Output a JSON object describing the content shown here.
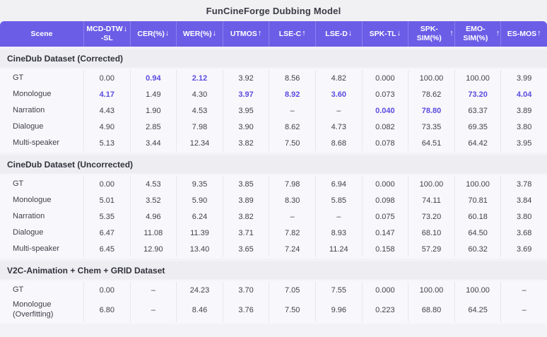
{
  "title": "FunCineForge Dubbing Model",
  "colors": {
    "header_bg": "#6c5de7",
    "highlight_text": "#5b4be0",
    "section_band_bg": "#ededf2",
    "rows_bg": "#f8f8fc"
  },
  "table": {
    "columns": [
      {
        "label": "Scene",
        "sublabel": "",
        "arrow": ""
      },
      {
        "label": "MCD-DTW",
        "sublabel": "-SL",
        "arrow": "↓"
      },
      {
        "label": "CER(%)",
        "sublabel": "",
        "arrow": "↓"
      },
      {
        "label": "WER(%)",
        "sublabel": "",
        "arrow": "↓"
      },
      {
        "label": "UTMOS",
        "sublabel": "",
        "arrow": "↑"
      },
      {
        "label": "LSE-C",
        "sublabel": "",
        "arrow": "↑"
      },
      {
        "label": "LSE-D",
        "sublabel": "",
        "arrow": "↓"
      },
      {
        "label": "SPK-TL",
        "sublabel": "",
        "arrow": "↓"
      },
      {
        "label": "SPK-SIM(%)",
        "sublabel": "",
        "arrow": "↑"
      },
      {
        "label": "EMO-SIM(%)",
        "sublabel": "",
        "arrow": "↑"
      },
      {
        "label": "ES-MOS",
        "sublabel": "",
        "arrow": "↑"
      }
    ],
    "sections": [
      {
        "title": "CineDub Dataset (Corrected)",
        "rows": [
          {
            "scene": "GT",
            "values": [
              "0.00",
              "0.94",
              "2.12",
              "3.92",
              "8.56",
              "4.82",
              "0.000",
              "100.00",
              "100.00",
              "3.99"
            ],
            "highlights": [
              1,
              2
            ]
          },
          {
            "scene": "Monologue",
            "values": [
              "4.17",
              "1.49",
              "4.30",
              "3.97",
              "8.92",
              "3.60",
              "0.073",
              "78.62",
              "73.20",
              "4.04"
            ],
            "highlights": [
              0,
              3,
              4,
              5,
              8,
              9
            ]
          },
          {
            "scene": "Narration",
            "values": [
              "4.43",
              "1.90",
              "4.53",
              "3.95",
              "–",
              "–",
              "0.040",
              "78.80",
              "63.37",
              "3.89"
            ],
            "highlights": [
              6,
              7
            ]
          },
          {
            "scene": "Dialogue",
            "values": [
              "4.90",
              "2.85",
              "7.98",
              "3.90",
              "8.62",
              "4.73",
              "0.082",
              "73.35",
              "69.35",
              "3.80"
            ],
            "highlights": []
          },
          {
            "scene": "Multi-speaker",
            "values": [
              "5.13",
              "3.44",
              "12.34",
              "3.82",
              "7.50",
              "8.68",
              "0.078",
              "64.51",
              "64.42",
              "3.95"
            ],
            "highlights": []
          }
        ]
      },
      {
        "title": "CineDub Dataset (Uncorrected)",
        "rows": [
          {
            "scene": "GT",
            "values": [
              "0.00",
              "4.53",
              "9.35",
              "3.85",
              "7.98",
              "6.94",
              "0.000",
              "100.00",
              "100.00",
              "3.78"
            ],
            "highlights": []
          },
          {
            "scene": "Monologue",
            "values": [
              "5.01",
              "3.52",
              "5.90",
              "3.89",
              "8.30",
              "5.85",
              "0.098",
              "74.11",
              "70.81",
              "3.84"
            ],
            "highlights": []
          },
          {
            "scene": "Narration",
            "values": [
              "5.35",
              "4.96",
              "6.24",
              "3.82",
              "–",
              "–",
              "0.075",
              "73.20",
              "60.18",
              "3.80"
            ],
            "highlights": []
          },
          {
            "scene": "Dialogue",
            "values": [
              "6.47",
              "11.08",
              "11.39",
              "3.71",
              "7.82",
              "8.93",
              "0.147",
              "68.10",
              "64.50",
              "3.68"
            ],
            "highlights": []
          },
          {
            "scene": "Multi-speaker",
            "values": [
              "6.45",
              "12.90",
              "13.40",
              "3.65",
              "7.24",
              "11.24",
              "0.158",
              "57.29",
              "60.32",
              "3.69"
            ],
            "highlights": []
          }
        ]
      },
      {
        "title": "V2C-Animation + Chem + GRID Dataset",
        "rows": [
          {
            "scene": "GT",
            "values": [
              "0.00",
              "–",
              "24.23",
              "3.70",
              "7.05",
              "7.55",
              "0.000",
              "100.00",
              "100.00",
              "–"
            ],
            "highlights": []
          },
          {
            "scene": "Monologue (Overfitting)",
            "values": [
              "6.80",
              "–",
              "8.46",
              "3.76",
              "7.50",
              "9.96",
              "0.223",
              "68.80",
              "64.25",
              "–"
            ],
            "highlights": [],
            "tall": true
          }
        ]
      }
    ]
  }
}
